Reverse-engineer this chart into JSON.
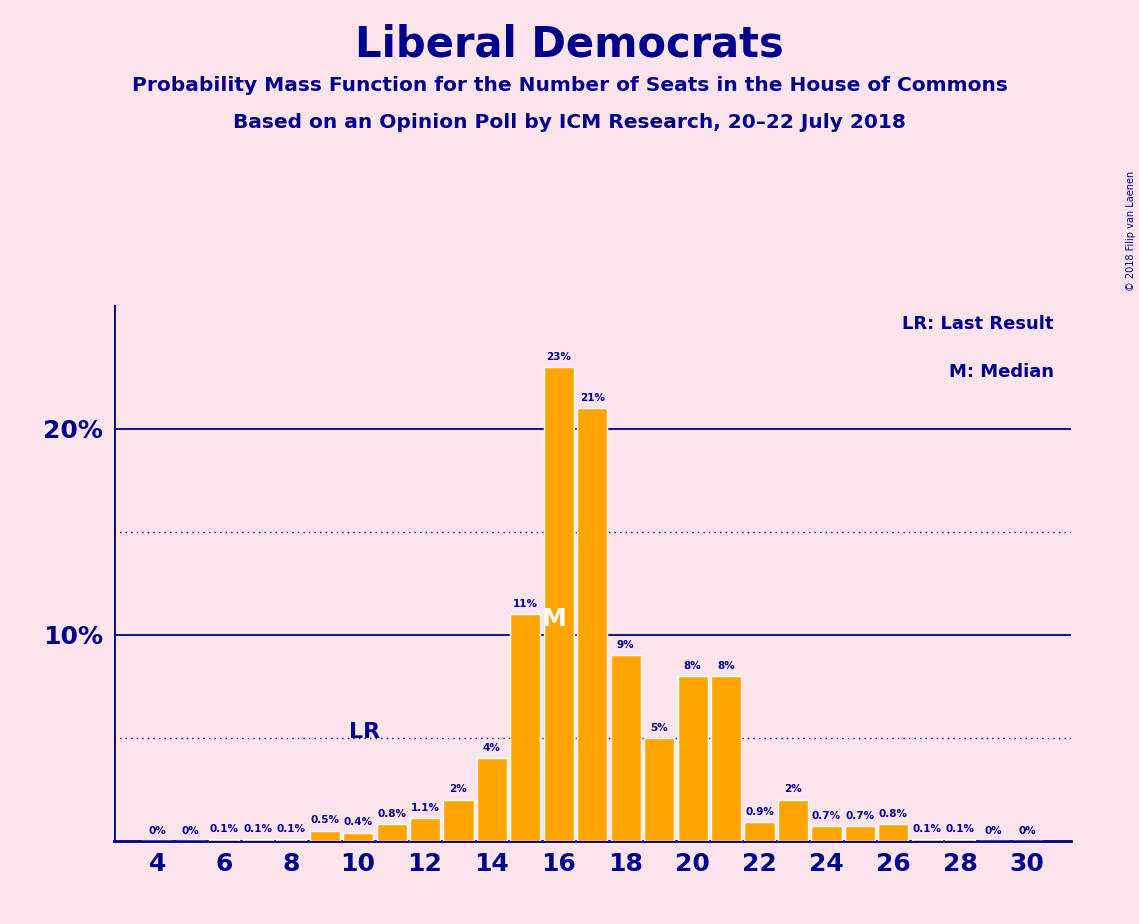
{
  "title": "Liberal Democrats",
  "subtitle1": "Probability Mass Function for the Number of Seats in the House of Commons",
  "subtitle2": "Based on an Opinion Poll by ICM Research, 20–22 July 2018",
  "copyright": "© 2018 Filip van Laenen",
  "background_color": "#fce4ec",
  "bar_color": "#FFA500",
  "text_color": "#00008B",
  "seats": [
    4,
    5,
    6,
    7,
    8,
    9,
    10,
    11,
    12,
    13,
    14,
    15,
    16,
    17,
    18,
    19,
    20,
    21,
    22,
    23,
    24,
    25,
    26,
    27,
    28,
    29,
    30
  ],
  "values": [
    0.0,
    0.0,
    0.1,
    0.1,
    0.1,
    0.5,
    0.4,
    0.8,
    1.1,
    2.0,
    4.0,
    11.0,
    23.0,
    21.0,
    9.0,
    5.0,
    8.0,
    8.0,
    0.9,
    2.0,
    0.7,
    0.7,
    0.8,
    0.1,
    0.1,
    0.0,
    0.0
  ],
  "lr_seat": 12,
  "median_seat": 16,
  "xticks": [
    4,
    6,
    8,
    10,
    12,
    14,
    16,
    18,
    20,
    22,
    24,
    26,
    28,
    30
  ],
  "solid_lines": [
    10,
    20
  ],
  "dotted_lines": [
    5,
    15
  ]
}
